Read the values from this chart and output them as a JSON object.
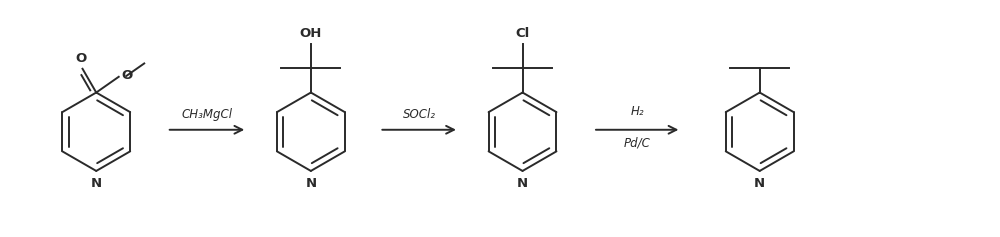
{
  "bg_color": "#ffffff",
  "line_color": "#2a2a2a",
  "text_color": "#2a2a2a",
  "figsize": [
    10.0,
    2.37
  ],
  "dpi": 100,
  "arrow1_label": "CH₃MgCl",
  "arrow2_label": "SOCl₂",
  "arrow3_label_top": "H₂",
  "arrow3_label_bot": "Pd/C",
  "mol1_O_label": "O",
  "mol1_O2_label": "O",
  "mol1_N_label": "N",
  "mol2_OH_label": "OH",
  "mol2_N_label": "N",
  "mol3_Cl_label": "Cl",
  "mol3_N_label": "N",
  "mol4_N_label": "N"
}
